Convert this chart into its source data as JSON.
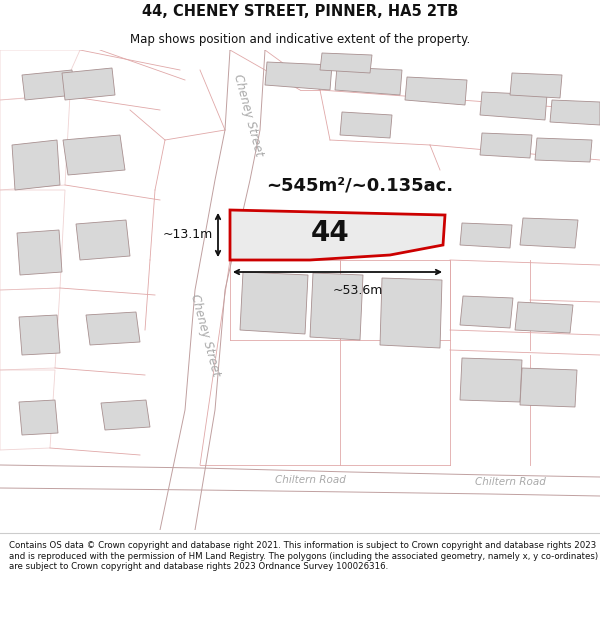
{
  "title": "44, CHENEY STREET, PINNER, HA5 2TB",
  "subtitle": "Map shows position and indicative extent of the property.",
  "footer": "Contains OS data © Crown copyright and database right 2021. This information is subject to Crown copyright and database rights 2023 and is reproduced with the permission of HM Land Registry. The polygons (including the associated geometry, namely x, y co-ordinates) are subject to Crown copyright and database rights 2023 Ordnance Survey 100026316.",
  "area_text": "~545m²/~0.135ac.",
  "width_label": "~53.6m",
  "height_label": "~13.1m",
  "property_number": "44",
  "map_bg": "#ffffff",
  "property_outline_color": "#cc0000",
  "road_line_color": "#c8a0a0",
  "building_fill": "#d8d8d8",
  "building_edge_light": "#c0a8a8",
  "building_edge_dark": "#a89090",
  "street_label_color": "#aaaaaa",
  "dim_line_color": "#111111",
  "title_color": "#111111",
  "footer_color": "#111111",
  "parcel_color": "#e0a8a8"
}
